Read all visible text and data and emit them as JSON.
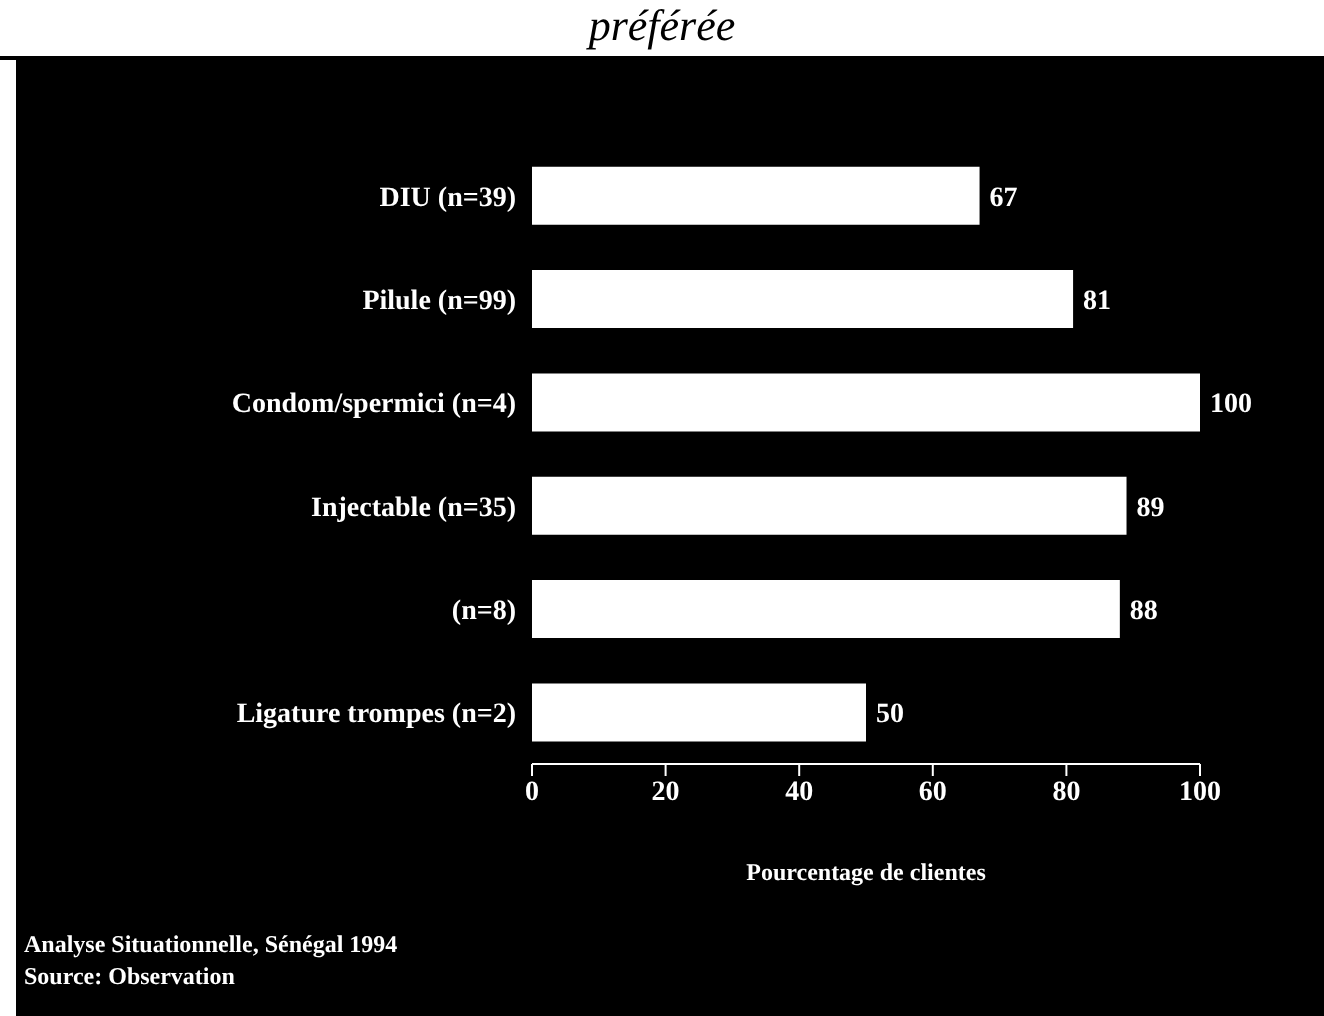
{
  "chart_data": {
    "type": "bar",
    "orientation": "horizontal",
    "title": "préférée",
    "categories": [
      "DIU (n=39)",
      "Pilule (n=99)",
      "Condom/spermici (n=4)",
      "Injectable (n=35)",
      "(n=8)",
      "Ligature trompes (n=2)"
    ],
    "values": [
      67,
      81,
      100,
      89,
      88,
      50
    ],
    "color": "#ffffff",
    "xlim": [
      0,
      100
    ],
    "xticks": [
      0,
      20,
      40,
      60,
      80,
      100
    ],
    "xlabel": "Pourcentage de clientes",
    "data_labels": true,
    "grid": false,
    "legend": false,
    "annotations": [
      "Analyse Situationnelle, Sénégal 1994",
      "Source: Observation"
    ]
  }
}
